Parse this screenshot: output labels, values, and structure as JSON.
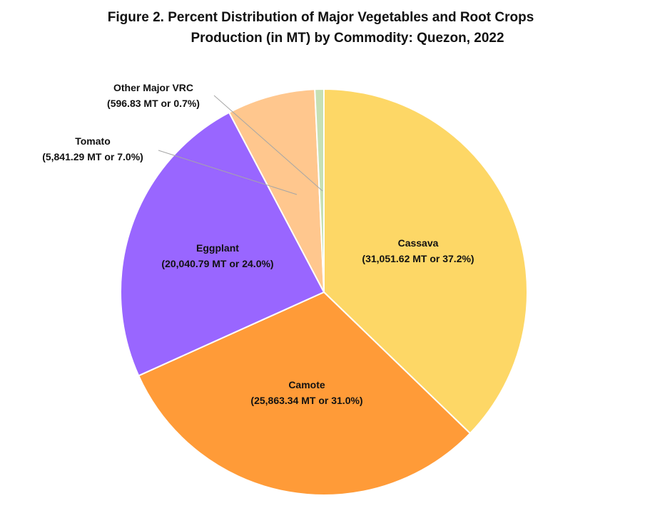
{
  "title_line1": "Figure 2. Percent Distribution of Major Vegetables and Root Crops",
  "title_line2": "Production (in MT) by Commodity: Quezon, 2022",
  "chart_data": {
    "type": "pie",
    "slices": [
      {
        "name": "Cassava",
        "value": 31051.62,
        "percent": 37.2,
        "label": "(31,051.62 MT or 37.2%)",
        "color": "#FDD766"
      },
      {
        "name": "Camote",
        "value": 25863.34,
        "percent": 31.0,
        "label": "(25,863.34 MT or 31.0%)",
        "color": "#FF9B38"
      },
      {
        "name": "Eggplant",
        "value": 20040.79,
        "percent": 24.0,
        "label": "(20,040.79 MT or 24.0%)",
        "color": "#9966FF"
      },
      {
        "name": "Tomato",
        "value": 5841.29,
        "percent": 7.0,
        "label": "(5,841.29 MT or 7.0%)",
        "color": "#FFC78E"
      },
      {
        "name": "Other Major VRC",
        "value": 596.83,
        "percent": 0.7,
        "label": "(596.83 MT or 0.7%)",
        "color": "#C6E0B4"
      }
    ]
  }
}
